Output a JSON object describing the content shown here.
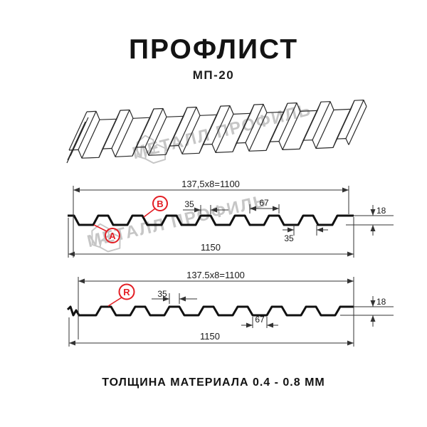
{
  "page": {
    "title": "ПРОФЛИСТ",
    "subtitle": "МП-20",
    "footer": "ТОЛЩИНА МАТЕРИАЛА 0.4 - 0.8 ММ"
  },
  "watermark": {
    "text": "МЕТАЛЛ ПРОФИЛЬ"
  },
  "colors": {
    "accent_red": "#e31e24",
    "line": "#1a1a1a",
    "watermark_gray": "#c6c6c6"
  },
  "drawing_front": {
    "labels": {
      "a": "A",
      "b": "B"
    },
    "dims": {
      "module": "137,5x8=1100",
      "rib_top_width": "35",
      "rib_pitch": "67",
      "profile_height": "18",
      "bottom_flat_width": "35",
      "overall_width": "1150"
    }
  },
  "drawing_back": {
    "labels": {
      "r": "R"
    },
    "dims": {
      "module": "137.5x8=1100",
      "rib_top_width": "35",
      "rib_pitch": "67",
      "profile_height": "18",
      "overall_width": "1150"
    }
  }
}
